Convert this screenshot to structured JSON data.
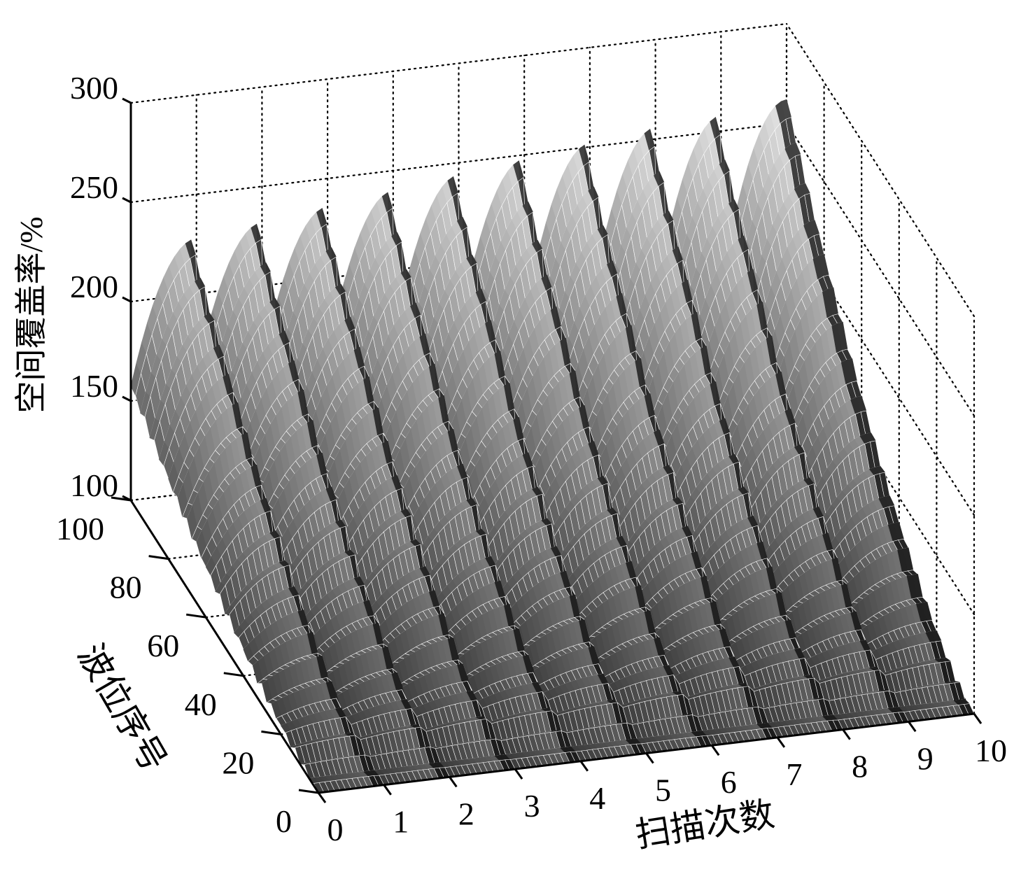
{
  "chart_data": {
    "type": "surface",
    "xlabel": "扫描次数",
    "ylabel": "波位序号",
    "zlabel": "空间覆盖率/%",
    "xlim": [
      0,
      10
    ],
    "ylim": [
      0,
      100
    ],
    "zlim": [
      100,
      300
    ],
    "x_ticks": [
      "0",
      "1",
      "2",
      "3",
      "4",
      "5",
      "6",
      "7",
      "8",
      "9",
      "10"
    ],
    "y_ticks": [
      "0",
      "20",
      "40",
      "60",
      "80",
      "100"
    ],
    "z_ticks": [
      "100",
      "150",
      "200",
      "250",
      "300"
    ],
    "grid": true,
    "colormap": "gray",
    "scan_count": 10,
    "beam_count": 100,
    "peak_values_per_scan": [
      228,
      232,
      236,
      240,
      244,
      248,
      252,
      256,
      258,
      262
    ],
    "min_value_per_scan": 100,
    "description_of_shape": ""
  }
}
